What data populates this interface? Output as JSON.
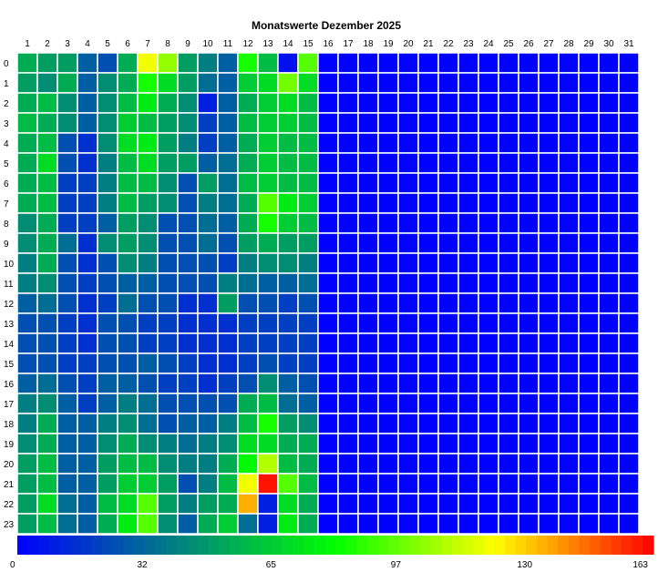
{
  "chart_data": {
    "type": "heatmap",
    "title": "Monatswerte Dezember 2025",
    "xlabel": "",
    "ylabel": "",
    "x_categories": [
      "1",
      "2",
      "3",
      "4",
      "5",
      "6",
      "7",
      "8",
      "9",
      "10",
      "11",
      "12",
      "13",
      "14",
      "15",
      "16",
      "17",
      "18",
      "19",
      "20",
      "21",
      "22",
      "23",
      "24",
      "25",
      "26",
      "27",
      "28",
      "29",
      "30",
      "31"
    ],
    "y_categories": [
      "0",
      "1",
      "2",
      "3",
      "4",
      "5",
      "6",
      "7",
      "8",
      "9",
      "10",
      "11",
      "12",
      "13",
      "14",
      "15",
      "16",
      "17",
      "18",
      "19",
      "20",
      "21",
      "22",
      "23"
    ],
    "color_range": [
      0,
      163
    ],
    "colorbar_ticks": [
      "0",
      "32",
      "65",
      "97",
      "130",
      "163"
    ],
    "colormap": [
      "#0000ff",
      "#008080",
      "#00ff00",
      "#ffff00",
      "#ff0000"
    ],
    "grid_color": "#ffffff",
    "values": [
      [
        55,
        50,
        50,
        30,
        25,
        55,
        120,
        105,
        50,
        40,
        30,
        85,
        60,
        5,
        95,
        0,
        0,
        0,
        0,
        0,
        0,
        0,
        0,
        0,
        0,
        0,
        0,
        0,
        0,
        0,
        0
      ],
      [
        50,
        45,
        55,
        30,
        45,
        55,
        85,
        70,
        50,
        35,
        30,
        65,
        70,
        100,
        70,
        0,
        0,
        0,
        0,
        0,
        0,
        0,
        0,
        0,
        0,
        0,
        0,
        0,
        0,
        0,
        0
      ],
      [
        55,
        60,
        45,
        30,
        45,
        60,
        75,
        55,
        45,
        10,
        30,
        55,
        65,
        70,
        60,
        0,
        0,
        0,
        0,
        0,
        0,
        0,
        0,
        0,
        0,
        0,
        0,
        0,
        0,
        0,
        0
      ],
      [
        60,
        55,
        45,
        30,
        45,
        65,
        60,
        50,
        45,
        20,
        30,
        60,
        65,
        65,
        60,
        0,
        0,
        0,
        0,
        0,
        0,
        0,
        0,
        0,
        0,
        0,
        0,
        0,
        0,
        0,
        0
      ],
      [
        55,
        60,
        25,
        15,
        45,
        70,
        75,
        50,
        40,
        20,
        30,
        55,
        65,
        60,
        60,
        0,
        0,
        0,
        0,
        0,
        0,
        0,
        0,
        0,
        0,
        0,
        0,
        0,
        0,
        0,
        0
      ],
      [
        55,
        70,
        25,
        15,
        40,
        60,
        70,
        50,
        50,
        30,
        35,
        55,
        65,
        60,
        60,
        0,
        0,
        0,
        0,
        0,
        0,
        0,
        0,
        0,
        0,
        0,
        0,
        0,
        0,
        0,
        0
      ],
      [
        55,
        60,
        20,
        20,
        40,
        60,
        60,
        45,
        25,
        50,
        35,
        60,
        65,
        60,
        60,
        0,
        0,
        0,
        0,
        0,
        0,
        0,
        0,
        0,
        0,
        0,
        0,
        0,
        0,
        0,
        0
      ],
      [
        55,
        60,
        20,
        20,
        40,
        60,
        50,
        45,
        25,
        40,
        35,
        55,
        95,
        75,
        65,
        0,
        0,
        0,
        0,
        0,
        0,
        0,
        0,
        0,
        0,
        0,
        0,
        0,
        0,
        0,
        0
      ],
      [
        45,
        55,
        20,
        20,
        30,
        50,
        45,
        25,
        25,
        35,
        30,
        55,
        85,
        65,
        60,
        0,
        0,
        0,
        0,
        0,
        0,
        0,
        0,
        0,
        0,
        0,
        0,
        0,
        0,
        0,
        0
      ],
      [
        45,
        55,
        35,
        15,
        45,
        50,
        45,
        25,
        25,
        35,
        25,
        50,
        55,
        50,
        50,
        0,
        0,
        0,
        0,
        0,
        0,
        0,
        0,
        0,
        0,
        0,
        0,
        0,
        0,
        0,
        0
      ],
      [
        40,
        55,
        25,
        15,
        25,
        45,
        40,
        25,
        25,
        25,
        20,
        40,
        45,
        45,
        40,
        0,
        0,
        0,
        0,
        0,
        0,
        0,
        0,
        0,
        0,
        0,
        0,
        0,
        0,
        0,
        0
      ],
      [
        40,
        45,
        25,
        20,
        25,
        30,
        30,
        25,
        25,
        25,
        40,
        35,
        30,
        30,
        35,
        0,
        0,
        0,
        0,
        0,
        0,
        0,
        0,
        0,
        0,
        0,
        0,
        0,
        0,
        0,
        0
      ],
      [
        30,
        35,
        25,
        15,
        20,
        35,
        25,
        25,
        15,
        15,
        50,
        25,
        25,
        20,
        25,
        0,
        0,
        0,
        0,
        0,
        0,
        0,
        0,
        0,
        0,
        0,
        0,
        0,
        0,
        0,
        0
      ],
      [
        25,
        25,
        20,
        15,
        25,
        25,
        20,
        20,
        15,
        15,
        15,
        20,
        20,
        20,
        20,
        0,
        0,
        0,
        0,
        0,
        0,
        0,
        0,
        0,
        0,
        0,
        0,
        0,
        0,
        0,
        0
      ],
      [
        25,
        25,
        20,
        15,
        25,
        25,
        20,
        20,
        15,
        15,
        15,
        20,
        20,
        20,
        20,
        0,
        0,
        0,
        0,
        0,
        0,
        0,
        0,
        0,
        0,
        0,
        0,
        0,
        0,
        0,
        0
      ],
      [
        25,
        25,
        20,
        20,
        25,
        25,
        30,
        25,
        20,
        15,
        15,
        20,
        25,
        20,
        20,
        0,
        0,
        0,
        0,
        0,
        0,
        0,
        0,
        0,
        0,
        0,
        0,
        0,
        0,
        0,
        0
      ],
      [
        30,
        35,
        25,
        20,
        30,
        30,
        25,
        20,
        20,
        15,
        20,
        25,
        45,
        30,
        25,
        0,
        0,
        0,
        0,
        0,
        0,
        0,
        0,
        0,
        0,
        0,
        0,
        0,
        0,
        0,
        0
      ],
      [
        40,
        45,
        30,
        20,
        30,
        40,
        35,
        25,
        25,
        25,
        25,
        55,
        60,
        35,
        30,
        0,
        0,
        0,
        0,
        0,
        0,
        0,
        0,
        0,
        0,
        0,
        0,
        0,
        0,
        0,
        0
      ],
      [
        40,
        55,
        30,
        30,
        40,
        45,
        35,
        25,
        30,
        30,
        40,
        60,
        85,
        50,
        45,
        0,
        0,
        0,
        0,
        0,
        0,
        0,
        0,
        0,
        0,
        0,
        0,
        0,
        0,
        0,
        0
      ],
      [
        45,
        55,
        30,
        30,
        45,
        55,
        45,
        40,
        35,
        40,
        45,
        70,
        70,
        55,
        55,
        0,
        0,
        0,
        0,
        0,
        0,
        0,
        0,
        0,
        0,
        0,
        0,
        0,
        0,
        0,
        0
      ],
      [
        50,
        60,
        30,
        30,
        50,
        60,
        60,
        45,
        40,
        40,
        55,
        80,
        110,
        60,
        55,
        0,
        0,
        0,
        0,
        0,
        0,
        0,
        0,
        0,
        0,
        0,
        0,
        0,
        0,
        0,
        0
      ],
      [
        50,
        60,
        30,
        30,
        50,
        65,
        65,
        50,
        25,
        40,
        60,
        120,
        160,
        95,
        60,
        0,
        0,
        0,
        0,
        0,
        0,
        0,
        0,
        0,
        0,
        0,
        0,
        0,
        0,
        0,
        0
      ],
      [
        50,
        70,
        35,
        30,
        60,
        70,
        95,
        50,
        40,
        50,
        55,
        135,
        10,
        70,
        55,
        0,
        0,
        0,
        0,
        0,
        0,
        0,
        0,
        0,
        0,
        0,
        0,
        0,
        0,
        0,
        0
      ],
      [
        50,
        60,
        35,
        30,
        55,
        75,
        95,
        45,
        30,
        55,
        65,
        35,
        10,
        75,
        55,
        0,
        0,
        0,
        0,
        0,
        0,
        0,
        0,
        0,
        0,
        0,
        0,
        0,
        0,
        0,
        0
      ]
    ]
  }
}
